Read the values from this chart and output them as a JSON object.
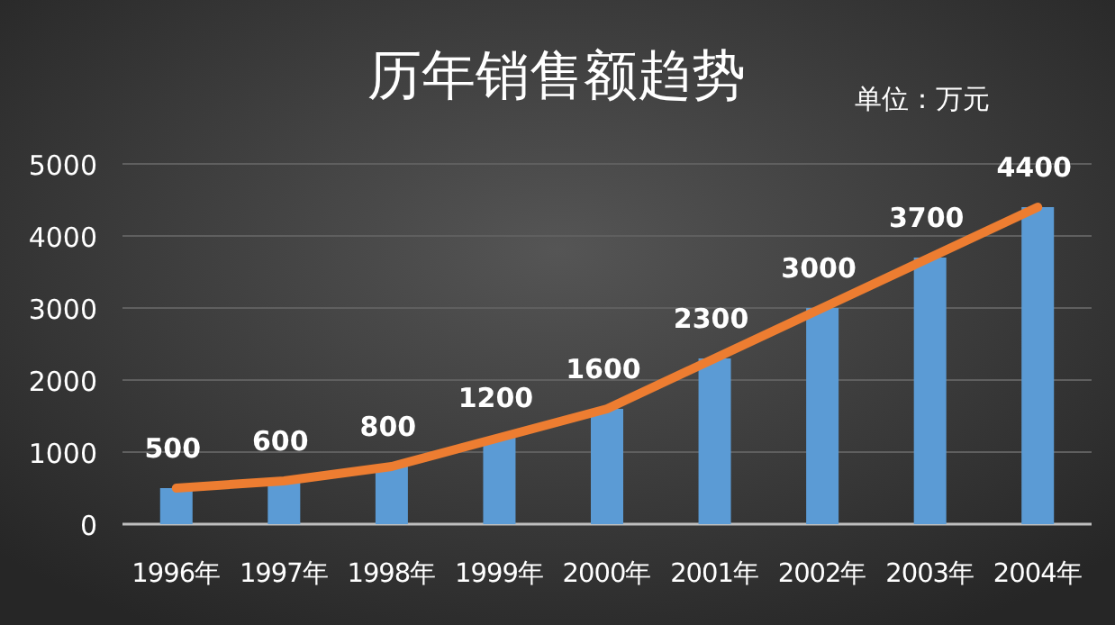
{
  "chart_data": {
    "type": "bar",
    "title": "历年销售额趋势",
    "subtitle": "单位：万元",
    "categories": [
      "1996年",
      "1997年",
      "1998年",
      "1999年",
      "2000年",
      "2001年",
      "2002年",
      "2003年",
      "2004年"
    ],
    "series": [
      {
        "color": "#5b9bd5",
        "values": [
          500,
          600,
          800,
          1200,
          1600,
          2300,
          3000,
          3700,
          4400
        ],
        "value_labels": [
          "500",
          "600",
          "800",
          "1200",
          "1600",
          "2300",
          "3000",
          "3700",
          "4400"
        ]
      },
      {
        "type": "line",
        "color": "#ed7d31",
        "values": [
          500,
          600,
          800,
          1200,
          1600,
          2300,
          3000,
          3700,
          4400
        ]
      }
    ],
    "ylim": [
      0,
      5000
    ],
    "yticks": [
      0,
      1000,
      2000,
      3000,
      4000,
      5000
    ],
    "grid": "y",
    "marker": "none",
    "line_style": "solid"
  }
}
